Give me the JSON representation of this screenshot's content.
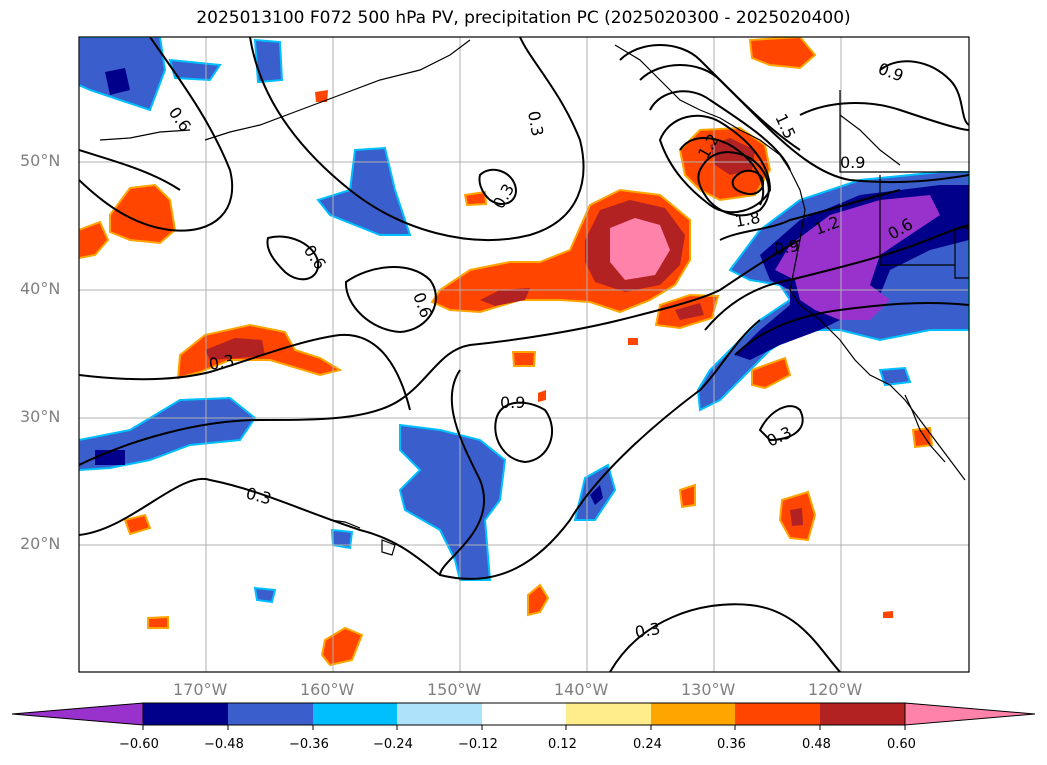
{
  "title": "2025013100 F072 500 hPa PV, precipitation PC (2025020300 - 2025020400)",
  "lat_labels": [
    "50°N",
    "40°N",
    "30°N",
    "20°N"
  ],
  "lon_labels": [
    "170°W",
    "160°W",
    "150°W",
    "140°W",
    "130°W",
    "120°W"
  ],
  "contour_labels": [
    "0.6",
    "0.3",
    "0.3",
    "0.6",
    "0.6",
    "0.9",
    "0.3",
    "0.3",
    "0.9",
    "1.5",
    "1.2",
    "1.8",
    "0.9",
    "1.2",
    "0.6",
    "0.9",
    "0.3",
    "0.3"
  ],
  "colorbar": {
    "ticks": [
      "−0.60",
      "−0.48",
      "−0.36",
      "−0.24",
      "−0.12",
      "0.12",
      "0.24",
      "0.36",
      "0.48",
      "0.60"
    ],
    "colors": [
      "#9932CC",
      "#00008B",
      "#3A5FCD",
      "#00BFFF",
      "#AEE2FA",
      "#FFFFFF",
      "#FFEC8B",
      "#FFA500",
      "#FF4500",
      "#B22222",
      "#FF82AB"
    ]
  }
}
